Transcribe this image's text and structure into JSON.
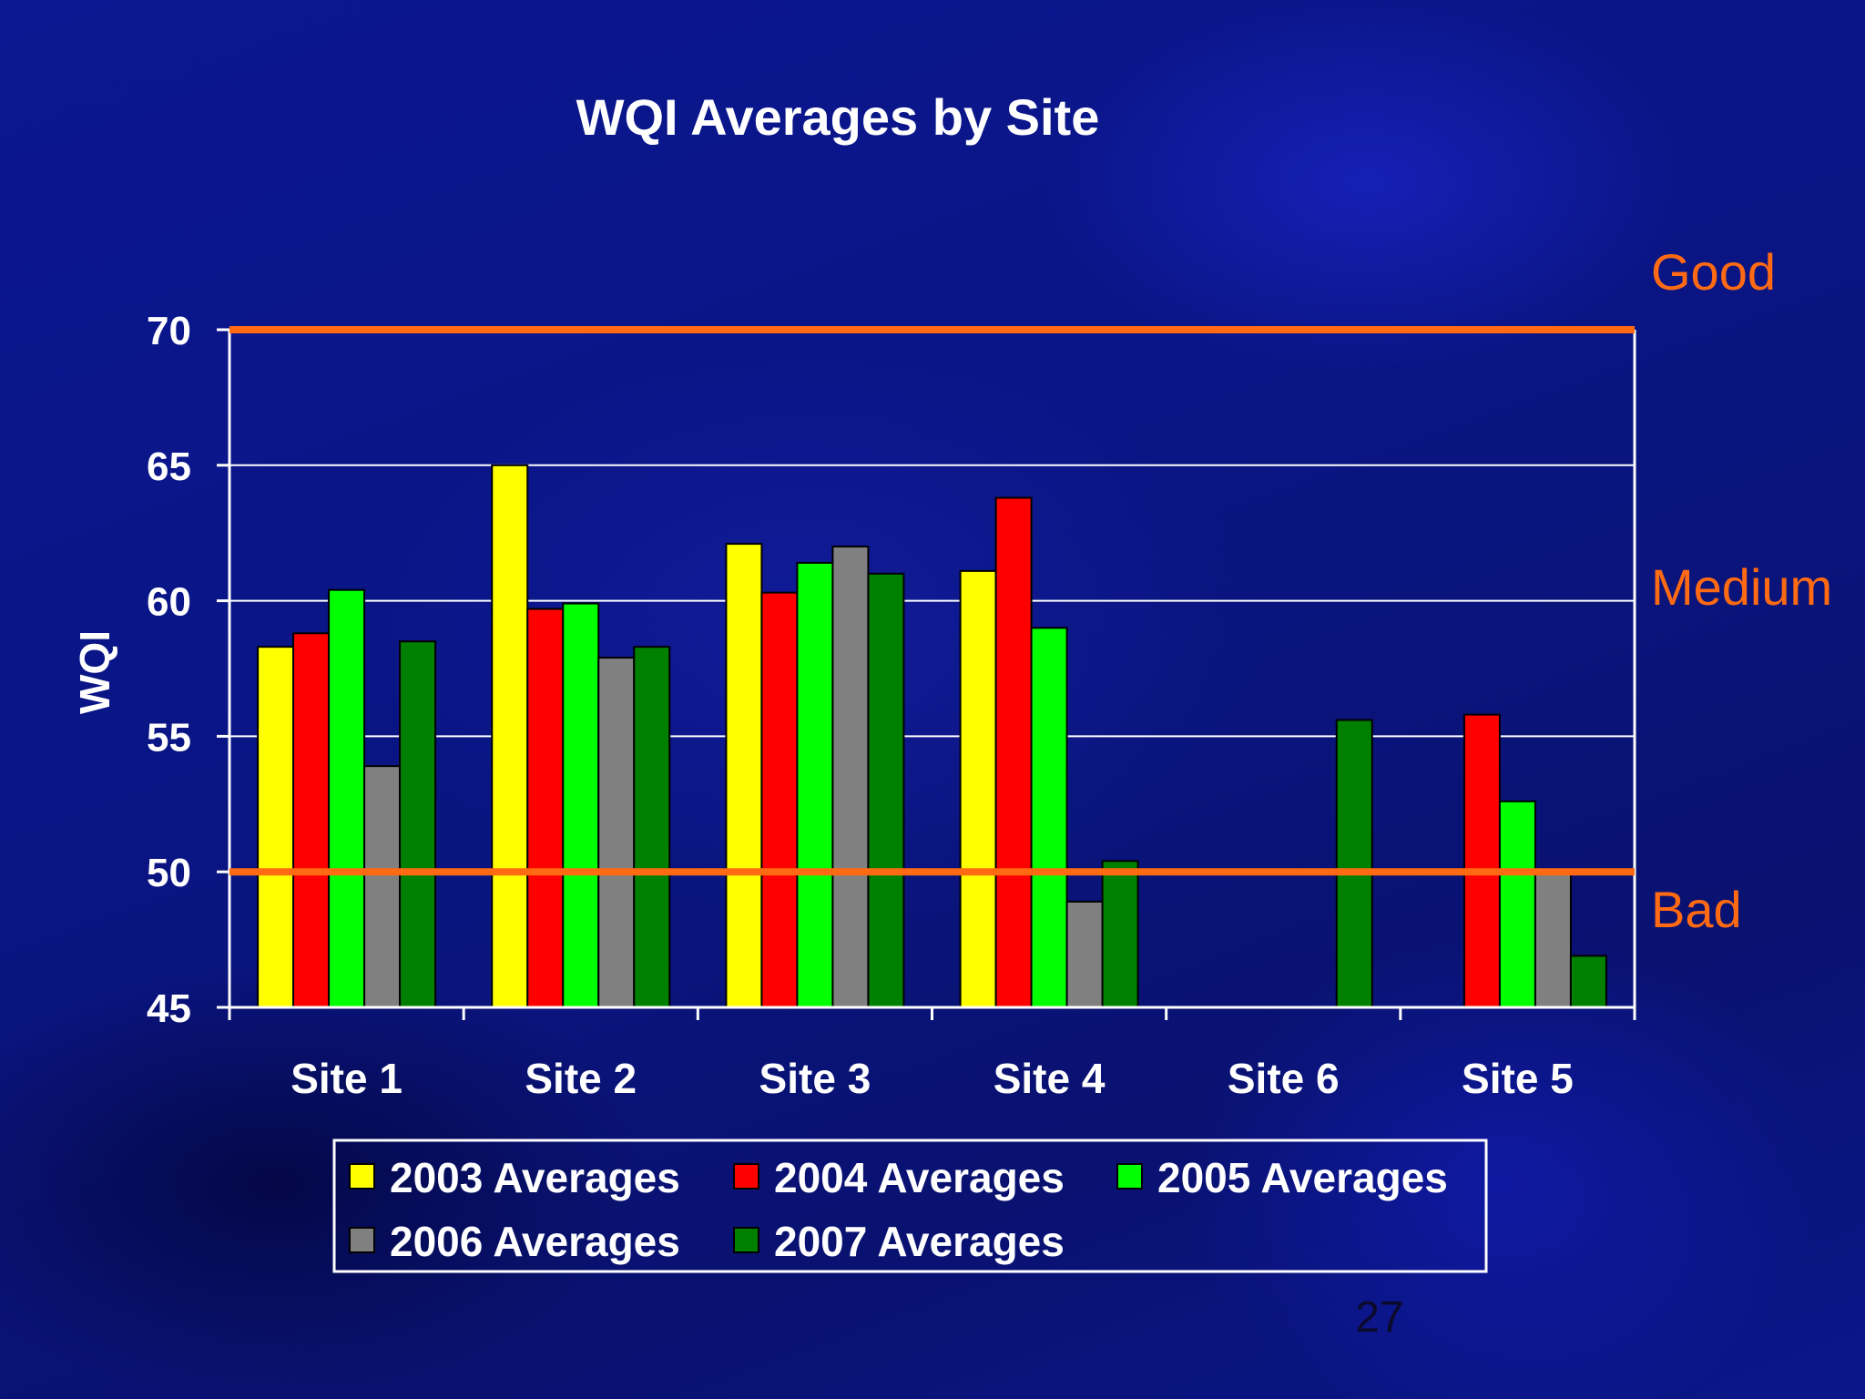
{
  "chart_data": {
    "type": "bar",
    "title": "WQI Averages by Site",
    "xlabel": "",
    "ylabel": "WQI",
    "ylim": [
      45,
      70
    ],
    "yticks": [
      45,
      50,
      55,
      60,
      65,
      70
    ],
    "grid": true,
    "legend_position": "bottom",
    "categories": [
      "Site 1",
      "Site 2",
      "Site 3",
      "Site 4",
      "Site 6",
      "Site 5"
    ],
    "series": [
      {
        "name": "2003 Averages",
        "color": "#ffff00",
        "values": [
          58.3,
          65.0,
          62.1,
          61.1,
          null,
          null
        ]
      },
      {
        "name": "2004 Averages",
        "color": "#ff0000",
        "values": [
          58.8,
          59.7,
          60.3,
          63.8,
          null,
          55.8
        ]
      },
      {
        "name": "2005 Averages",
        "color": "#00ff00",
        "values": [
          60.4,
          59.9,
          61.4,
          59.0,
          null,
          52.6
        ]
      },
      {
        "name": "2006 Averages",
        "color": "#808080",
        "values": [
          53.9,
          57.9,
          62.0,
          48.9,
          null,
          50.0
        ]
      },
      {
        "name": "2007 Averages",
        "color": "#008000",
        "values": [
          58.5,
          58.3,
          61.0,
          50.4,
          55.6,
          46.9
        ]
      }
    ],
    "reference_lines": [
      {
        "value": 70,
        "label": "Good",
        "color": "#ff6a13"
      },
      {
        "value": 50,
        "label": "Bad",
        "color": "#ff6a13"
      }
    ],
    "zone_labels": [
      "Good",
      "Medium",
      "Bad"
    ],
    "zone_color": "#ff6a13"
  },
  "slide": {
    "page_number": "27"
  }
}
